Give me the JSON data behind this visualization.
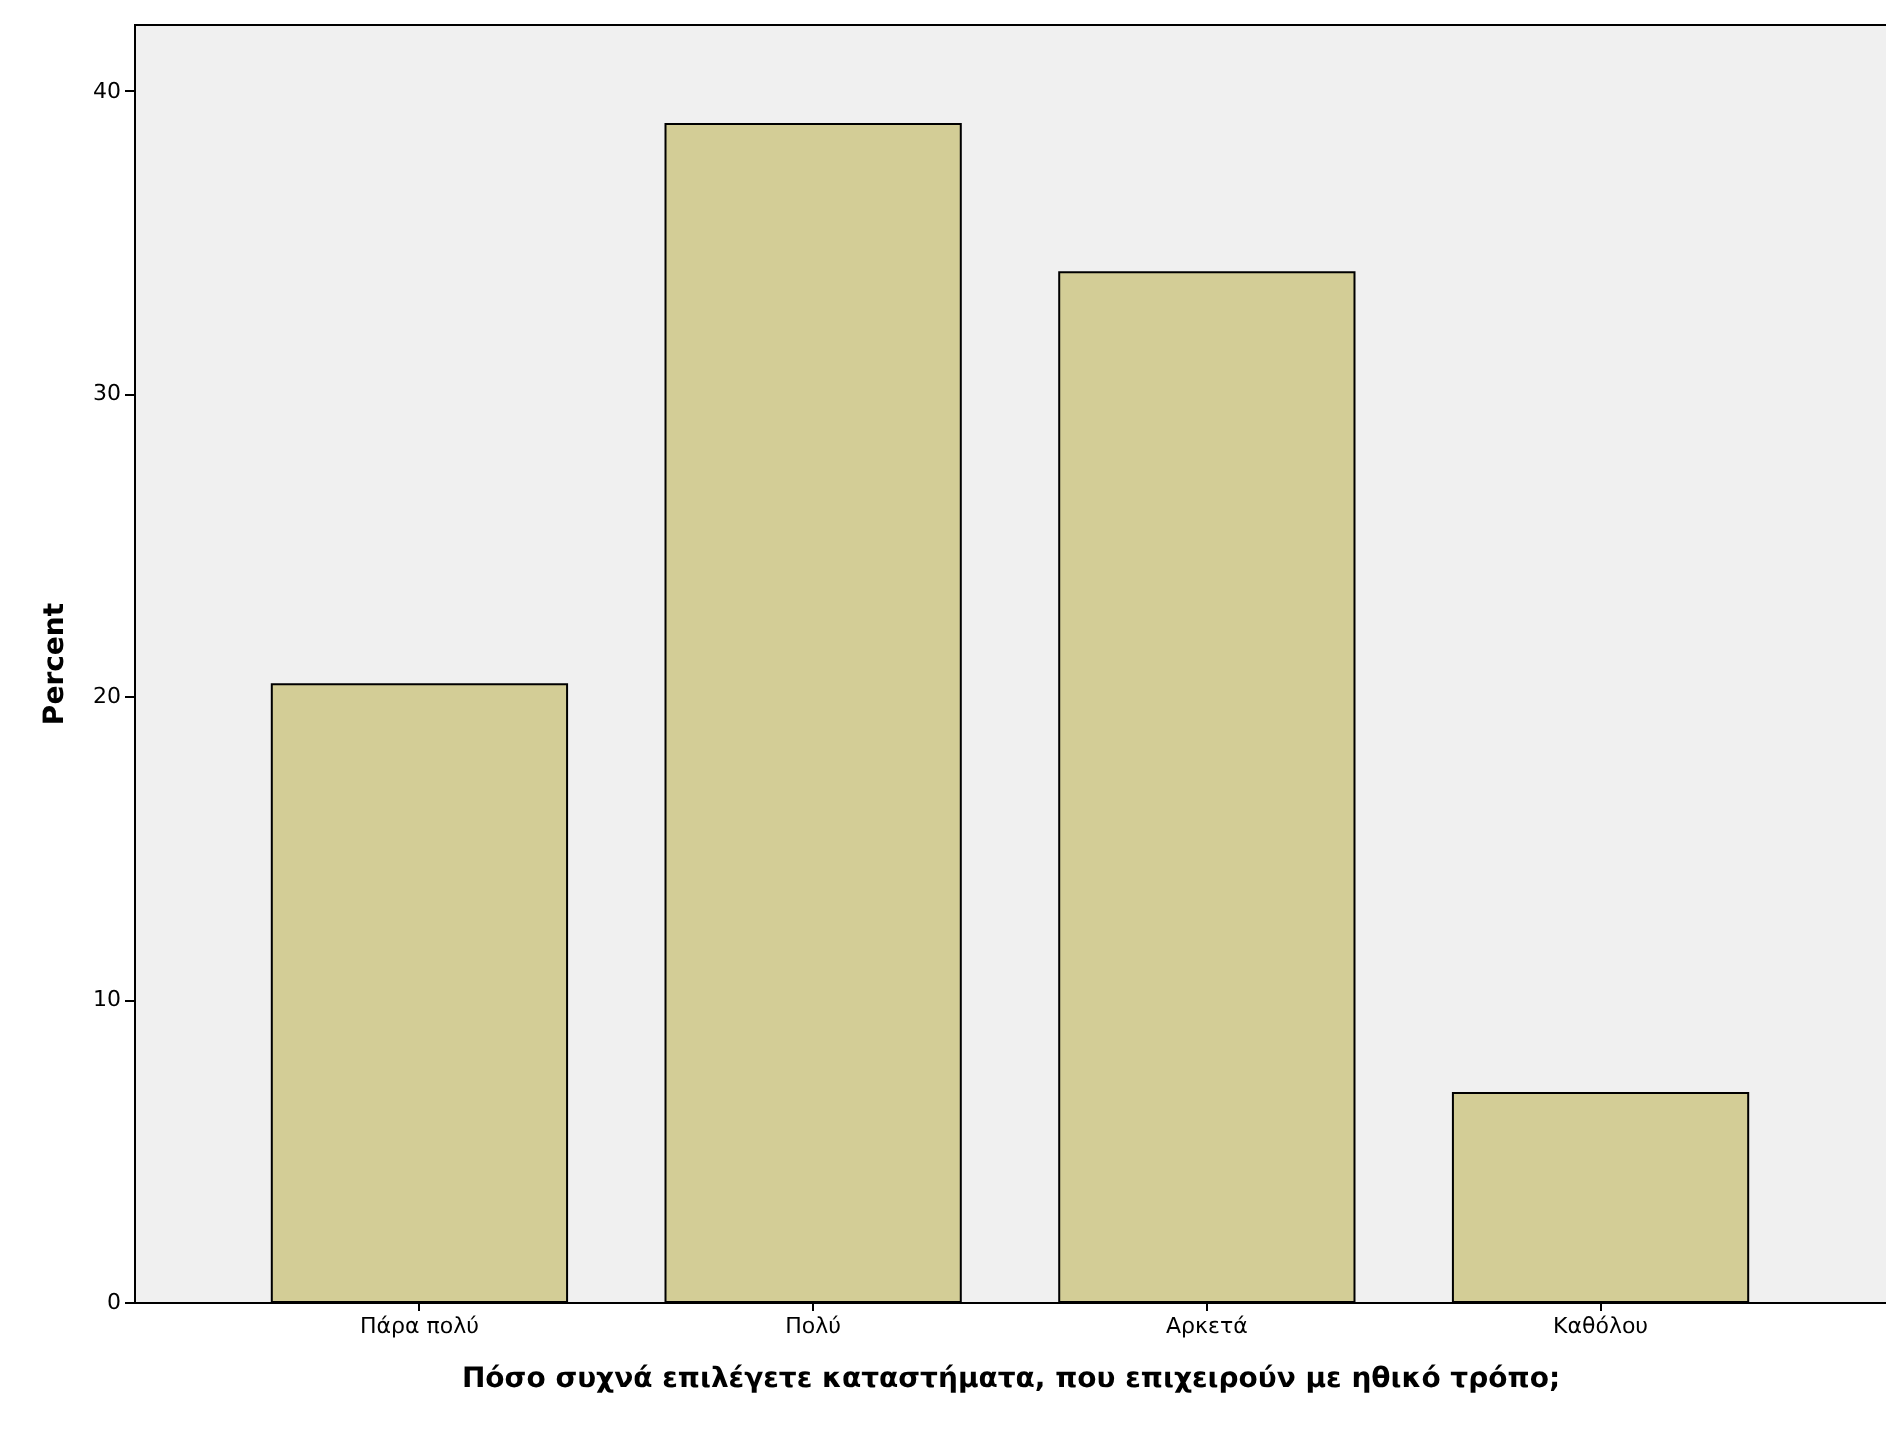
{
  "chart_data": {
    "type": "bar",
    "xlabel": "Πόσο συχνά επιλέγετε καταστήματα, που επιχειρούν με ηθικό τρόπο;",
    "ylabel": "Percent",
    "categories": [
      "Πάρα πολύ",
      "Πολύ",
      "Αρκετά",
      "Καθόλου"
    ],
    "values": [
      20.4,
      38.9,
      34.0,
      6.9
    ],
    "color": "#d3cd96",
    "ylim": [
      0,
      42.2
    ],
    "yticks": [
      0,
      10,
      20,
      30,
      40
    ],
    "grid": false
  }
}
